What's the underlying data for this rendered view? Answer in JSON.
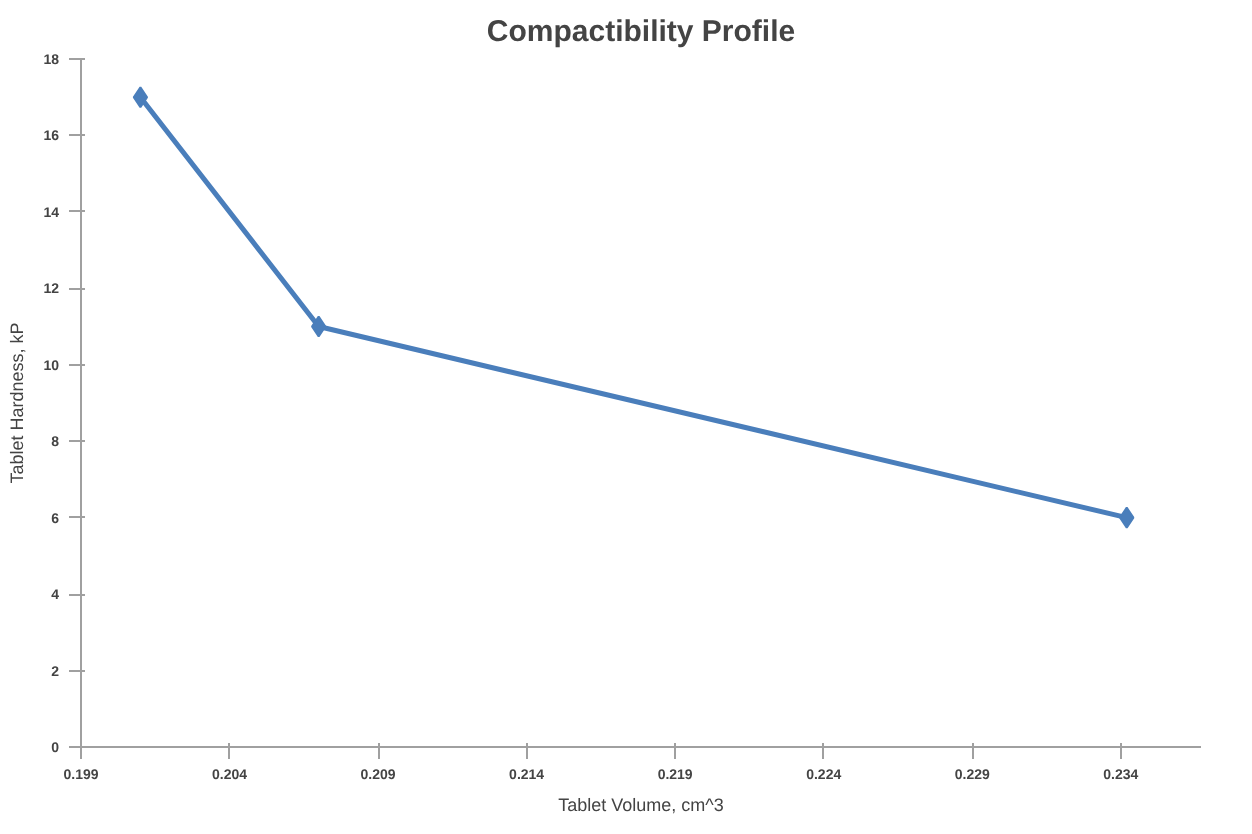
{
  "chart_data": {
    "type": "line",
    "title": "Compactibility Profile",
    "xlabel": "Tablet Volume, cm^3",
    "ylabel": "Tablet Hardness, kP",
    "x": [
      0.201,
      0.207,
      0.2342
    ],
    "series": [
      {
        "color": "#4a7ebb",
        "values": [
          17,
          11,
          6
        ]
      }
    ],
    "xlim": [
      0.199,
      0.2367
    ],
    "xticks": [
      {
        "value": 0.199,
        "label": "0.199"
      },
      {
        "value": 0.204,
        "label": "0.204"
      },
      {
        "value": 0.209,
        "label": "0.209"
      },
      {
        "value": 0.214,
        "label": "0.214"
      },
      {
        "value": 0.219,
        "label": "0.219"
      },
      {
        "value": 0.224,
        "label": "0.224"
      },
      {
        "value": 0.229,
        "label": "0.229"
      },
      {
        "value": 0.234,
        "label": "0.234"
      }
    ],
    "ylim": [
      0,
      18
    ],
    "yticks": [
      0,
      2,
      4,
      6,
      8,
      10,
      12,
      14,
      16,
      18
    ],
    "grid": false,
    "marker": "diamond",
    "line_style": "solid"
  }
}
